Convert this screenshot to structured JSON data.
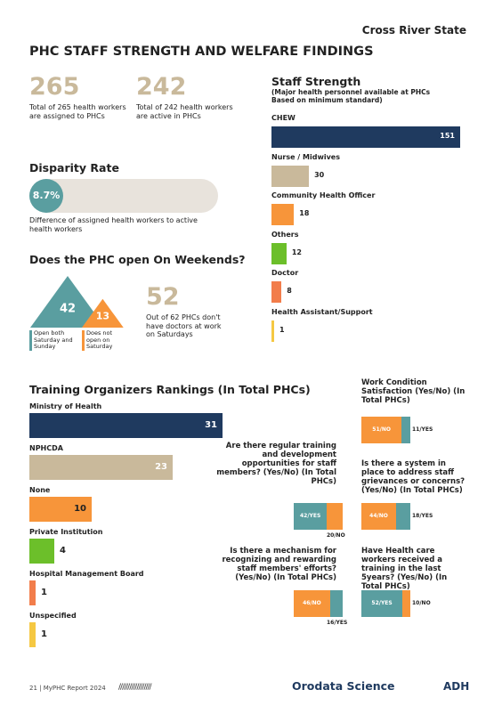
{
  "header": {
    "region": "Cross River State",
    "title": "PHC STAFF STRENGTH AND WELFARE FINDINGS"
  },
  "stats": [
    {
      "value": 265,
      "caption": "Total of 265 health workers are assigned to PHCs"
    },
    {
      "value": 242,
      "caption": "Total of 242 health workers are active in PHCs"
    }
  ],
  "disparity": {
    "title": "Disparity Rate",
    "value": 8.7,
    "value_label": "8.7%",
    "caption": "Difference of assigned health workers to active health workers"
  },
  "weekends": {
    "title": "Does the PHC open On Weekends?",
    "groups": [
      {
        "value": 42,
        "label": "Open both Saturday and Sunday",
        "color": "#5a9ea0"
      },
      {
        "value": 13,
        "label": "Does not open on Saturday",
        "color": "#f7953a"
      }
    ],
    "doctors": {
      "value": 52,
      "caption": "Out of 62 PHCs don't have doctors at work on Saturdays"
    }
  },
  "chart_data": [
    {
      "type": "bar",
      "title": "Staff Strength",
      "subtitle": "(Major health personnel available at PHCs Based on minimum standard)",
      "categories": [
        "CHEW",
        "Nurse / Midwives",
        "Community Health Officer",
        "Others",
        "Doctor",
        "Health Assistant/Support"
      ],
      "values": [
        151,
        30,
        18,
        12,
        8,
        1
      ],
      "colors": [
        "#1f3a5f",
        "#c9b99b",
        "#f7953a",
        "#6cbf2a",
        "#f27d4b",
        "#f5c842"
      ]
    },
    {
      "type": "bar",
      "title": "Training Organizers Rankings (In Total PHCs)",
      "categories": [
        "Ministry of Health",
        "NPHCDA",
        "None",
        "Private Institution",
        "Hospital Management Board",
        "Unspecified"
      ],
      "values": [
        31,
        23,
        10,
        4,
        1,
        1
      ],
      "colors": [
        "#1f3a5f",
        "#c9b99b",
        "#f7953a",
        "#6cbf2a",
        "#f27d4b",
        "#f5c842"
      ]
    },
    {
      "type": "stacked",
      "title": "Work Condition Satisfaction (Yes/No) (In Total PHCs)",
      "values": [
        51,
        11
      ],
      "value_labels": [
        "51/NO",
        "11/YES"
      ],
      "colors": [
        "#f7953a",
        "#5a9ea0"
      ]
    },
    {
      "type": "stacked",
      "title": "Are there regular training and development opportunities for staff members? (Yes/No) (In Total PHCs)",
      "values": [
        42,
        20
      ],
      "value_labels": [
        "42/YES",
        "20/NO"
      ],
      "colors": [
        "#5a9ea0",
        "#f7953a"
      ]
    },
    {
      "type": "stacked",
      "title": "Is there a system in place to address staff grievances or concerns? (Yes/No) (In Total PHCs)",
      "values": [
        44,
        18
      ],
      "value_labels": [
        "44/NO",
        "18/YES"
      ],
      "colors": [
        "#f7953a",
        "#5a9ea0"
      ]
    },
    {
      "type": "stacked",
      "title": "Is there a mechanism for recognizing and rewarding staff members' efforts? (Yes/No) (In Total PHCs)",
      "values": [
        46,
        16
      ],
      "value_labels": [
        "46/NO",
        "16/YES"
      ],
      "colors": [
        "#f7953a",
        "#5a9ea0"
      ]
    },
    {
      "type": "stacked",
      "title": "Have Health care workers received a training in the last 5years? (Yes/No) (In Total PHCs)",
      "values": [
        52,
        10
      ],
      "value_labels": [
        "52/YES",
        "10/NO"
      ],
      "colors": [
        "#5a9ea0",
        "#f7953a"
      ]
    }
  ],
  "footer": {
    "page": "21 | MyPHC Report 2024",
    "logo1": "Orodata Science",
    "logo2": "ADH"
  }
}
